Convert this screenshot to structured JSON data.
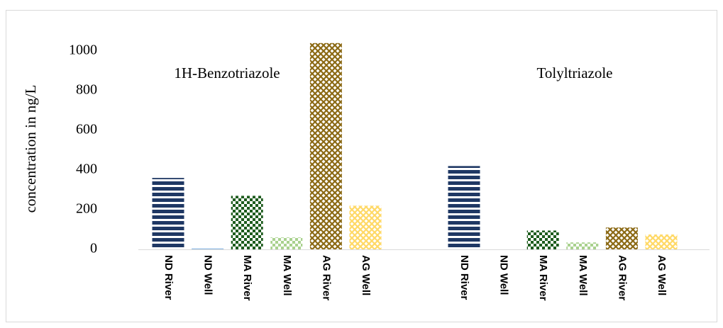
{
  "chart_data": {
    "type": "bar",
    "y_label": "concentration in ng/L",
    "ylim": [
      0,
      1050
    ],
    "yticks": [
      0,
      200,
      400,
      600,
      800,
      1000
    ],
    "grid": false,
    "colors": [
      "#1f3864",
      "#9dc3e6",
      "#1e5c1e",
      "#a9d18e",
      "#8b6914",
      "#ffd966"
    ],
    "patterns": [
      "stripes",
      "plain",
      "checker",
      "checker",
      "crosshatch",
      "crosshatch"
    ],
    "groups": [
      {
        "label": "1H-Benzotriazole",
        "categories": [
          "ND River",
          "ND Well",
          "MA River",
          "MA Well",
          "AG River",
          "AG Well"
        ],
        "values": [
          360,
          5,
          270,
          60,
          1040,
          220
        ]
      },
      {
        "label": "Tolyltriazole",
        "categories": [
          "ND River",
          "ND Well",
          "MA River",
          "MA Well",
          "AG River",
          "AG Well"
        ],
        "values": [
          420,
          0,
          95,
          35,
          110,
          75
        ]
      }
    ]
  }
}
